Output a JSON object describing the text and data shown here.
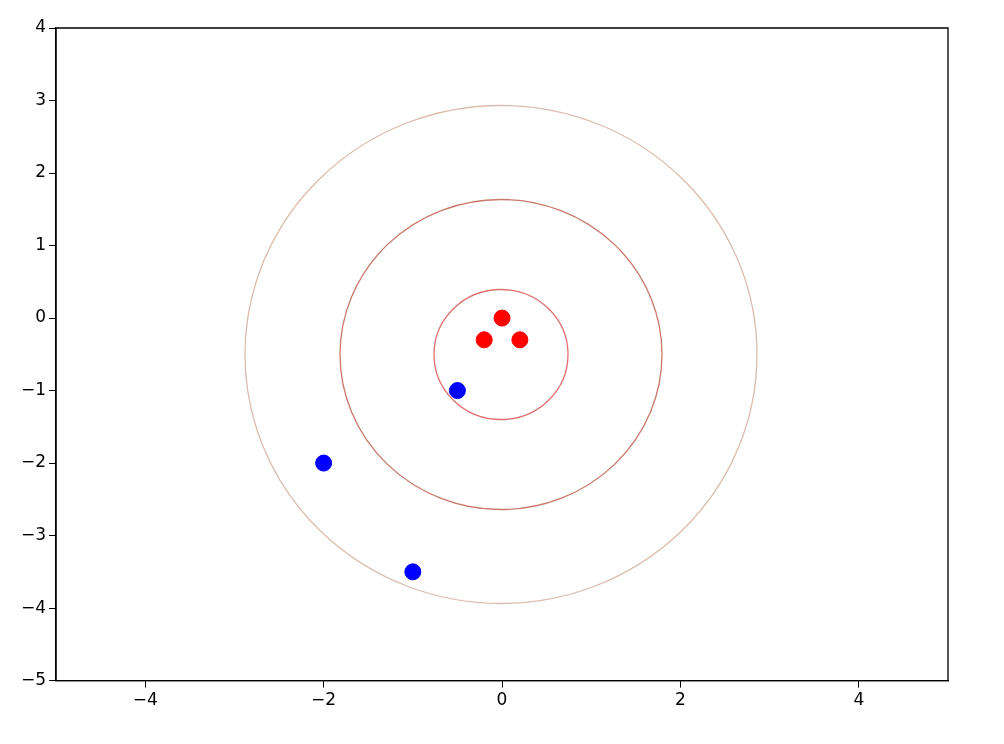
{
  "chart_data": {
    "type": "scatter",
    "xlim": [
      -5,
      5
    ],
    "ylim": [
      -5,
      4
    ],
    "xticks": [
      -4,
      -2,
      0,
      2,
      4
    ],
    "yticks": [
      -5,
      -4,
      -3,
      -2,
      -1,
      0,
      1,
      2,
      3,
      4
    ],
    "grid": false,
    "legend": false,
    "marker": "circle",
    "series": [
      {
        "color": "#ff0000",
        "x": [
          0,
          -0.2,
          0.2
        ],
        "values": [
          0,
          -0.3,
          -0.3
        ]
      },
      {
        "color": "#0000ff",
        "x": [
          -0.5,
          -2,
          -1
        ],
        "values": [
          -1,
          -2,
          -3.5
        ]
      }
    ]
  }
}
